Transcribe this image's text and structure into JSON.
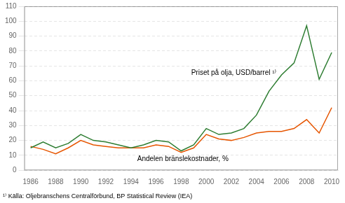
{
  "chart_data": {
    "type": "line",
    "x": [
      1986,
      1987,
      1988,
      1989,
      1990,
      1991,
      1992,
      1993,
      1994,
      1995,
      1996,
      1997,
      1998,
      1999,
      2000,
      2001,
      2002,
      2003,
      2004,
      2005,
      2006,
      2007,
      2008,
      2009,
      2010
    ],
    "series": [
      {
        "color": "#2e7d32",
        "values": [
          15,
          19,
          15,
          18,
          24,
          20,
          19,
          17,
          15,
          17,
          20,
          19,
          13,
          17,
          28,
          24,
          25,
          28,
          37,
          53,
          64,
          72,
          97,
          61,
          79
        ]
      },
      {
        "color": "#e65500",
        "values": [
          16,
          14,
          11,
          15,
          20,
          17,
          16,
          15,
          15,
          15,
          17,
          16,
          12,
          15,
          24,
          21,
          20,
          22,
          25,
          26,
          26,
          28,
          34,
          25,
          42
        ]
      }
    ],
    "xlim": [
      1985.5,
      2010.5
    ],
    "xticks": [
      1986,
      1988,
      1990,
      1992,
      1994,
      1996,
      1998,
      2000,
      2002,
      2004,
      2006,
      2008,
      2010
    ],
    "ylim": [
      0,
      110
    ],
    "yticks": [
      0,
      10,
      20,
      30,
      40,
      50,
      60,
      70,
      80,
      90,
      100,
      110
    ],
    "grid": "y",
    "annotations": [
      {
        "text": "Priset på olja, USD/barrel ¹⁾",
        "x": 1998.8,
        "y": 63
      },
      {
        "text": "Andelen bränslekostnader, %",
        "x": 1994.5,
        "y": 5
      }
    ],
    "footnote": "¹⁾ Källa: Oljebranschens Centralförbund, BP Statistical Review (IEA)"
  }
}
